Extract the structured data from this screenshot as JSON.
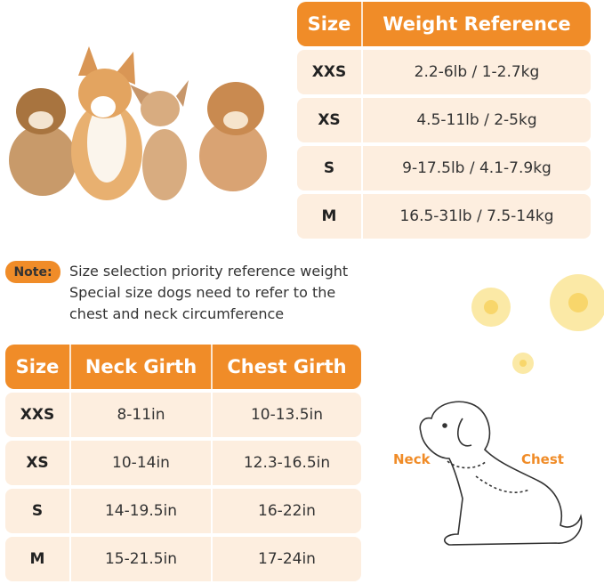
{
  "weight_table": {
    "headers": [
      "Size",
      "Weight Reference"
    ],
    "rows": [
      {
        "size": "XXS",
        "weight": "2.2-6lb / 1-2.7kg"
      },
      {
        "size": "XS",
        "weight": "4.5-11lb / 2-5kg"
      },
      {
        "size": "S",
        "weight": "9-17.5lb / 4.1-7.9kg"
      },
      {
        "size": "M",
        "weight": "16.5-31lb / 7.5-14kg"
      }
    ]
  },
  "note": {
    "label": "Note:",
    "lines": [
      "Size selection priority reference weight",
      "Special size dogs need to refer to the",
      "chest and neck circumference"
    ]
  },
  "girth_table": {
    "headers": [
      "Size",
      "Neck Girth",
      "Chest Girth"
    ],
    "rows": [
      {
        "size": "XXS",
        "neck": "8-11in",
        "chest": "10-13.5in"
      },
      {
        "size": "XS",
        "neck": "10-14in",
        "chest": "12.3-16.5in"
      },
      {
        "size": "S",
        "neck": "14-19.5in",
        "chest": "16-22in"
      },
      {
        "size": "M",
        "neck": "15-21.5in",
        "chest": "17-24in"
      }
    ]
  },
  "diagram": {
    "neck_label": "Neck",
    "chest_label": "Chest"
  },
  "colors": {
    "accent": "#f08c28",
    "row_bg": "#fdeedf"
  }
}
